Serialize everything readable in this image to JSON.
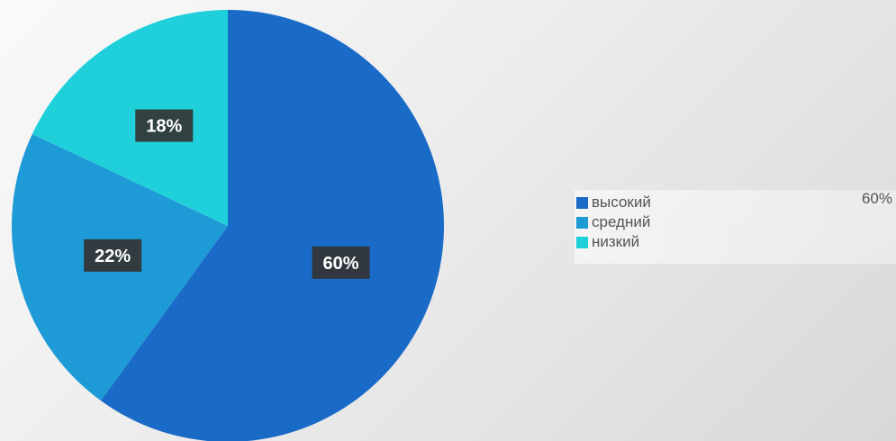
{
  "chart_data": {
    "type": "pie",
    "start_angle": "top",
    "direction": "clockwise",
    "slices": [
      {
        "label": "высокий",
        "value": 60,
        "display": "60%",
        "color": "#1a6bc7"
      },
      {
        "label": "средний",
        "value": 22,
        "display": "22%",
        "color": "#1e9bd6"
      },
      {
        "label": "низкий",
        "value": 18,
        "display": "18%",
        "color": "#1fd0db"
      }
    ],
    "legend_placement": "right",
    "label_box_color": "#333333"
  },
  "legend": {
    "highlight_value": "60%"
  }
}
